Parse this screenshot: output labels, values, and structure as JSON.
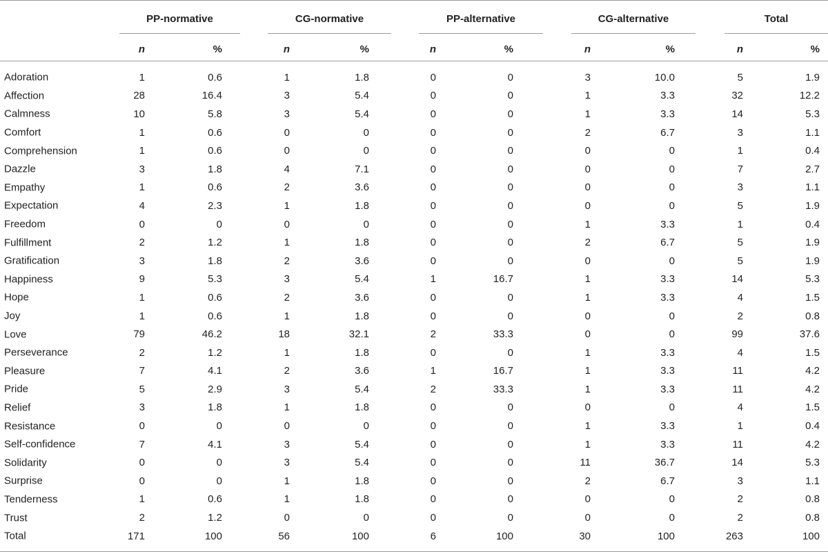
{
  "table": {
    "groups": [
      {
        "label": "PP-normative"
      },
      {
        "label": "CG-normative"
      },
      {
        "label": "PP-alternative"
      },
      {
        "label": "CG-alternative"
      },
      {
        "label": "Total"
      }
    ],
    "sub_n": "n",
    "sub_pct": "%",
    "rows": [
      {
        "label": "Adoration",
        "cells": [
          "1",
          "0.6",
          "1",
          "1.8",
          "0",
          "0",
          "3",
          "10.0",
          "5",
          "1.9"
        ]
      },
      {
        "label": "Affection",
        "cells": [
          "28",
          "16.4",
          "3",
          "5.4",
          "0",
          "0",
          "1",
          "3.3",
          "32",
          "12.2"
        ]
      },
      {
        "label": "Calmness",
        "cells": [
          "10",
          "5.8",
          "3",
          "5.4",
          "0",
          "0",
          "1",
          "3.3",
          "14",
          "5.3"
        ]
      },
      {
        "label": "Comfort",
        "cells": [
          "1",
          "0.6",
          "0",
          "0",
          "0",
          "0",
          "2",
          "6.7",
          "3",
          "1.1"
        ]
      },
      {
        "label": "Comprehension",
        "cells": [
          "1",
          "0.6",
          "0",
          "0",
          "0",
          "0",
          "0",
          "0",
          "1",
          "0.4"
        ]
      },
      {
        "label": "Dazzle",
        "cells": [
          "3",
          "1.8",
          "4",
          "7.1",
          "0",
          "0",
          "0",
          "0",
          "7",
          "2.7"
        ]
      },
      {
        "label": "Empathy",
        "cells": [
          "1",
          "0.6",
          "2",
          "3.6",
          "0",
          "0",
          "0",
          "0",
          "3",
          "1.1"
        ]
      },
      {
        "label": "Expectation",
        "cells": [
          "4",
          "2.3",
          "1",
          "1.8",
          "0",
          "0",
          "0",
          "0",
          "5",
          "1.9"
        ]
      },
      {
        "label": "Freedom",
        "cells": [
          "0",
          "0",
          "0",
          "0",
          "0",
          "0",
          "1",
          "3.3",
          "1",
          "0.4"
        ]
      },
      {
        "label": "Fulfillment",
        "cells": [
          "2",
          "1.2",
          "1",
          "1.8",
          "0",
          "0",
          "2",
          "6.7",
          "5",
          "1.9"
        ]
      },
      {
        "label": "Gratification",
        "cells": [
          "3",
          "1.8",
          "2",
          "3.6",
          "0",
          "0",
          "0",
          "0",
          "5",
          "1.9"
        ]
      },
      {
        "label": "Happiness",
        "cells": [
          "9",
          "5.3",
          "3",
          "5.4",
          "1",
          "16.7",
          "1",
          "3.3",
          "14",
          "5.3"
        ]
      },
      {
        "label": "Hope",
        "cells": [
          "1",
          "0.6",
          "2",
          "3.6",
          "0",
          "0",
          "1",
          "3.3",
          "4",
          "1.5"
        ]
      },
      {
        "label": "Joy",
        "cells": [
          "1",
          "0.6",
          "1",
          "1.8",
          "0",
          "0",
          "0",
          "0",
          "2",
          "0.8"
        ]
      },
      {
        "label": "Love",
        "cells": [
          "79",
          "46.2",
          "18",
          "32.1",
          "2",
          "33.3",
          "0",
          "0",
          "99",
          "37.6"
        ]
      },
      {
        "label": "Perseverance",
        "cells": [
          "2",
          "1.2",
          "1",
          "1.8",
          "0",
          "0",
          "1",
          "3.3",
          "4",
          "1.5"
        ]
      },
      {
        "label": "Pleasure",
        "cells": [
          "7",
          "4.1",
          "2",
          "3.6",
          "1",
          "16.7",
          "1",
          "3.3",
          "11",
          "4.2"
        ]
      },
      {
        "label": "Pride",
        "cells": [
          "5",
          "2.9",
          "3",
          "5.4",
          "2",
          "33.3",
          "1",
          "3.3",
          "11",
          "4.2"
        ]
      },
      {
        "label": "Relief",
        "cells": [
          "3",
          "1.8",
          "1",
          "1.8",
          "0",
          "0",
          "0",
          "0",
          "4",
          "1.5"
        ]
      },
      {
        "label": "Resistance",
        "cells": [
          "0",
          "0",
          "0",
          "0",
          "0",
          "0",
          "1",
          "3.3",
          "1",
          "0.4"
        ]
      },
      {
        "label": "Self-confidence",
        "cells": [
          "7",
          "4.1",
          "3",
          "5.4",
          "0",
          "0",
          "1",
          "3.3",
          "11",
          "4.2"
        ]
      },
      {
        "label": "Solidarity",
        "cells": [
          "0",
          "0",
          "3",
          "5.4",
          "0",
          "0",
          "11",
          "36.7",
          "14",
          "5.3"
        ]
      },
      {
        "label": "Surprise",
        "cells": [
          "0",
          "0",
          "1",
          "1.8",
          "0",
          "0",
          "2",
          "6.7",
          "3",
          "1.1"
        ]
      },
      {
        "label": "Tenderness",
        "cells": [
          "1",
          "0.6",
          "1",
          "1.8",
          "0",
          "0",
          "0",
          "0",
          "2",
          "0.8"
        ]
      },
      {
        "label": "Trust",
        "cells": [
          "2",
          "1.2",
          "0",
          "0",
          "0",
          "0",
          "0",
          "0",
          "2",
          "0.8"
        ]
      },
      {
        "label": "Total",
        "cells": [
          "171",
          "100",
          "56",
          "100",
          "6",
          "100",
          "30",
          "100",
          "263",
          "100"
        ]
      }
    ]
  }
}
